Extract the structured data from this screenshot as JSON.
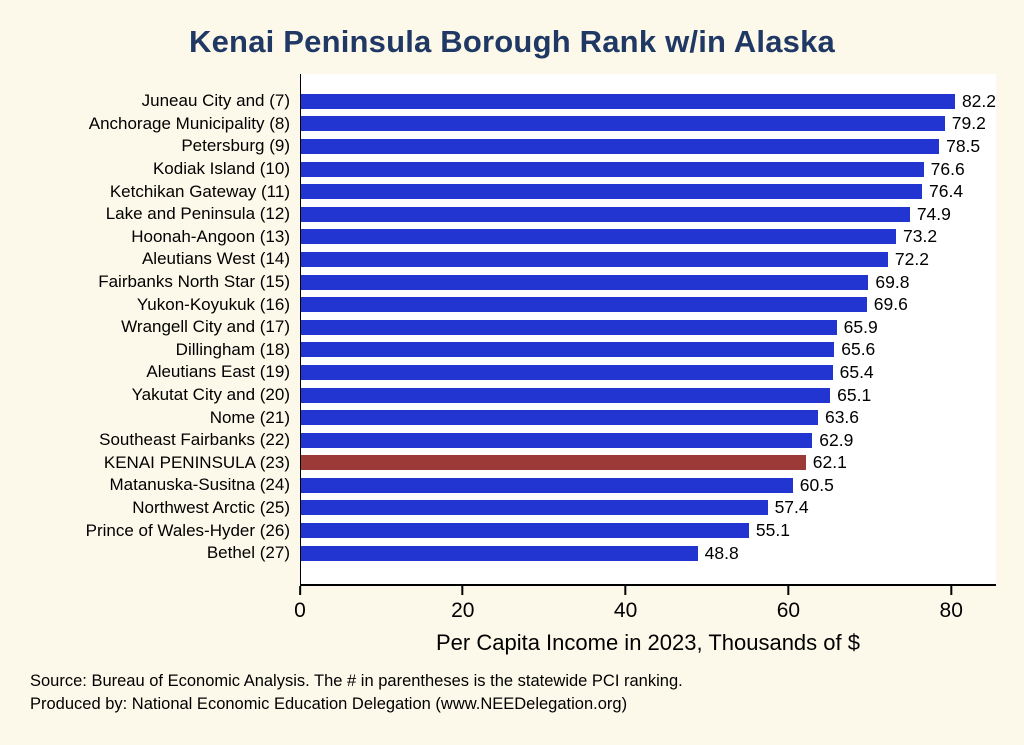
{
  "title": "Kenai Peninsula Borough Rank w/in Alaska",
  "colors": {
    "background": "#fdf9ea",
    "bar": "#2335d1",
    "highlight": "#9c3a38",
    "title": "#1f3864"
  },
  "chart_data": {
    "type": "bar",
    "orientation": "horizontal",
    "title": "Kenai Peninsula Borough Rank w/in Alaska",
    "xlabel": "Per Capita Income in 2023, Thousands of $",
    "xlim": [
      0,
      85.5
    ],
    "xticks": [
      0,
      20,
      40,
      60,
      80
    ],
    "grid": false,
    "legend": false,
    "categories": [
      "Juneau City and  (7)",
      "Anchorage Municipality  (8)",
      "Petersburg  (9)",
      "Kodiak Island  (10)",
      "Ketchikan Gateway  (11)",
      "Lake and Peninsula  (12)",
      "Hoonah-Angoon  (13)",
      "Aleutians West  (14)",
      "Fairbanks North Star  (15)",
      "Yukon-Koyukuk  (16)",
      "Wrangell City and  (17)",
      "Dillingham  (18)",
      "Aleutians East  (19)",
      "Yakutat City and  (20)",
      "Nome  (21)",
      "Southeast Fairbanks  (22)",
      "KENAI PENINSULA (23)",
      "Matanuska-Susitna  (24)",
      "Northwest Arctic  (25)",
      "Prince of Wales-Hyder  (26)",
      "Bethel  (27)"
    ],
    "values": [
      82.2,
      79.2,
      78.5,
      76.6,
      76.4,
      74.9,
      73.2,
      72.2,
      69.8,
      69.6,
      65.9,
      65.6,
      65.4,
      65.1,
      63.6,
      62.9,
      62.1,
      60.5,
      57.4,
      55.1,
      48.8
    ],
    "highlight_index": 16
  },
  "footer": {
    "line1": "Source: Bureau of Economic Analysis. The # in parentheses is the statewide PCI ranking.",
    "line2": "Produced by: National Economic Education Delegation (www.NEEDelegation.org)"
  }
}
